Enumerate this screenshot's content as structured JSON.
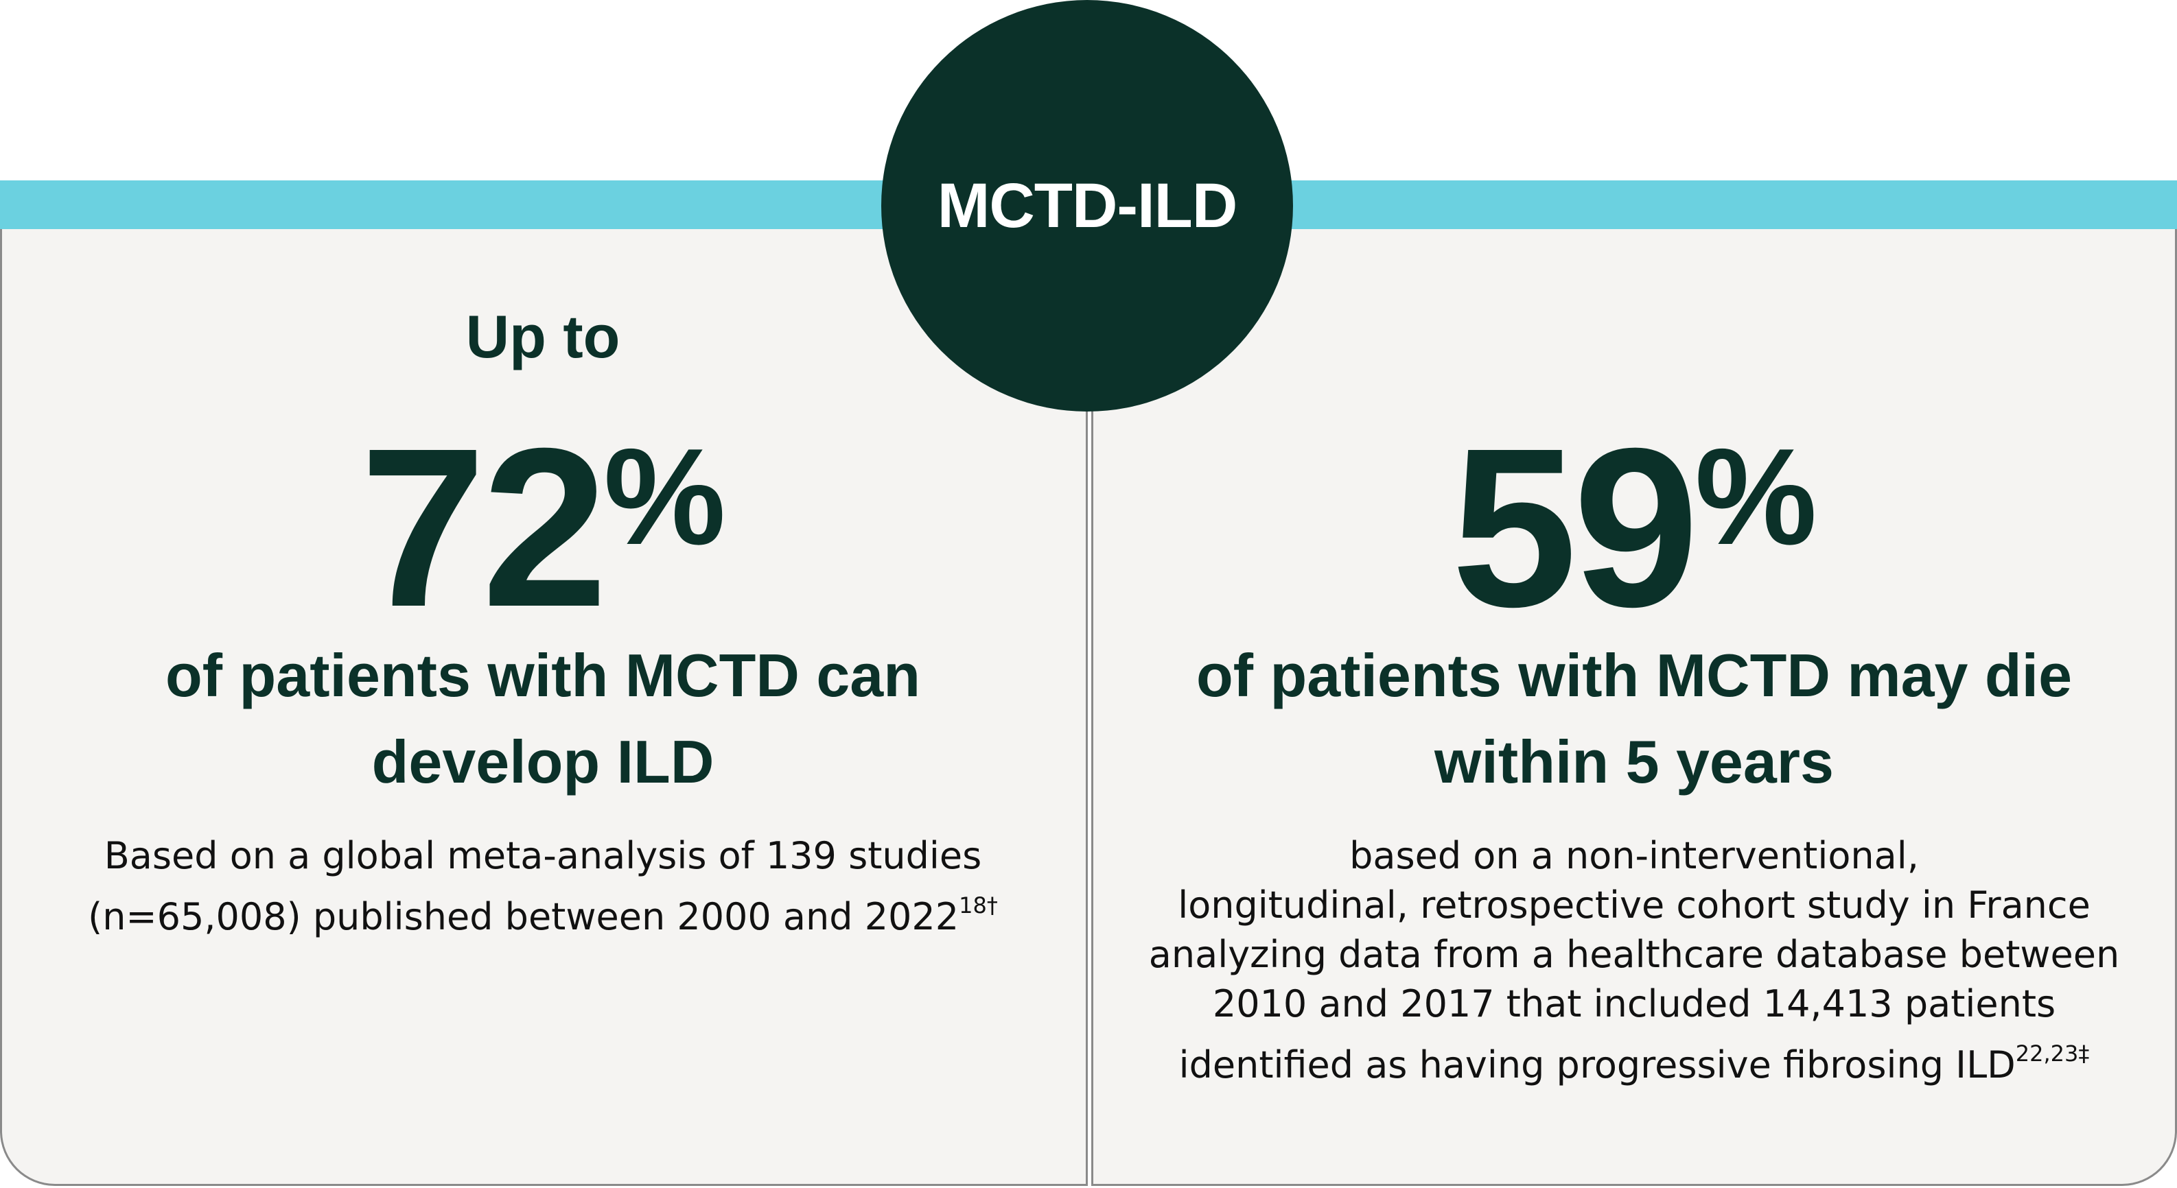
{
  "badge": "MCTD-ILD",
  "left": {
    "lead": "Up to",
    "stat": "72",
    "stat_symbol": "%",
    "headline": [
      "of patients with MCTD can",
      "develop ILD"
    ],
    "note": [
      "Based on a global meta-analysis of 139 studies",
      "(n=65,008) published between 2000 and 2022"
    ],
    "note_ref": "18†"
  },
  "right": {
    "stat": "59",
    "stat_symbol": "%",
    "headline": [
      "of patients with MCTD may die",
      "within 5 years"
    ],
    "note": [
      "based on a non-interventional,",
      "longitudinal, retrospective cohort study in France",
      "analyzing data from a healthcare database between",
      "2010 and 2017 that included 14,413 patients",
      "identified as having progressive fibrosing ILD"
    ],
    "note_ref": "22,23‡"
  }
}
